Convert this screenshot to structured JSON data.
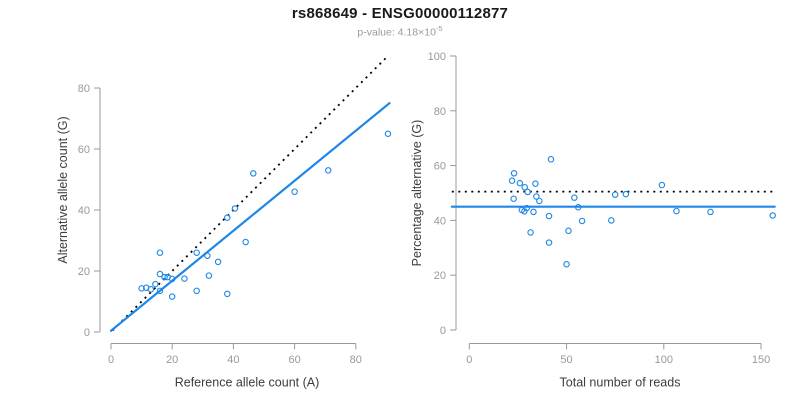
{
  "figure": {
    "title": "rs868649 - ENSG00000112877",
    "pvalue_text": "p-value: 4.18×10",
    "pvalue_exponent": "-5"
  },
  "colors": {
    "accent_blue": "#1E87E8",
    "reference_line_black": "#000000",
    "axis_gray": "#999999",
    "axis_title_dark": "#3d3d3d",
    "title_black": "#1a1a1a",
    "subtitle_gray": "#9a9a9a"
  },
  "chart_data": [
    {
      "id": "allele-counts",
      "type": "scatter",
      "title": "",
      "xlabel": "Reference allele count (A)",
      "ylabel": "Alternative allele count (G)",
      "xticks": [
        0,
        20,
        40,
        60,
        80
      ],
      "yticks": [
        0,
        20,
        40,
        60,
        80
      ],
      "xlim": [
        0,
        91
      ],
      "ylim": [
        0,
        91
      ],
      "grid": false,
      "legend": false,
      "points": [
        [
          10,
          14.3
        ],
        [
          11.5,
          14.5
        ],
        [
          13,
          14
        ],
        [
          14.5,
          15.7
        ],
        [
          16,
          26
        ],
        [
          16,
          19
        ],
        [
          16,
          13.5
        ],
        [
          17.5,
          18
        ],
        [
          18.5,
          18
        ],
        [
          20,
          17.4
        ],
        [
          20,
          11.6
        ],
        [
          24,
          17.5
        ],
        [
          28,
          26
        ],
        [
          28,
          13.5
        ],
        [
          31.5,
          25
        ],
        [
          32,
          18.5
        ],
        [
          35,
          23
        ],
        [
          38,
          37.5
        ],
        [
          38,
          12.5
        ],
        [
          40.5,
          40.5
        ],
        [
          44,
          29.5
        ],
        [
          46.5,
          52
        ],
        [
          60,
          46
        ],
        [
          71,
          53
        ],
        [
          90.5,
          65
        ]
      ],
      "lines": [
        {
          "name": "identity-expected",
          "style": "dotted",
          "slope": 1,
          "intercept": 0,
          "x_from": 0.5,
          "x_to": 90.5
        },
        {
          "name": "regression-fit",
          "style": "solid",
          "slope": 0.82,
          "intercept": 0.4,
          "x_from": 0,
          "x_to": 91
        }
      ]
    },
    {
      "id": "percentage-vs-coverage",
      "type": "scatter",
      "title": "",
      "xlabel": "Total number of reads",
      "ylabel": "Percentage alternative (G)",
      "xticks": [
        0,
        50,
        100,
        150
      ],
      "yticks": [
        0,
        20,
        40,
        60,
        80,
        100
      ],
      "xlim": [
        0,
        157
      ],
      "ylim": [
        0,
        100
      ],
      "grid": false,
      "legend": false,
      "points": [
        [
          22,
          54.5
        ],
        [
          22.8,
          47.9
        ],
        [
          23,
          57.2
        ],
        [
          26,
          53.6
        ],
        [
          27,
          43.8
        ],
        [
          28.3,
          43.3
        ],
        [
          28.5,
          52.1
        ],
        [
          29.5,
          44.5
        ],
        [
          30,
          50.4
        ],
        [
          31.5,
          35.6
        ],
        [
          33,
          43.1
        ],
        [
          34,
          53.4
        ],
        [
          34.5,
          48.7
        ],
        [
          36,
          47.1
        ],
        [
          41,
          41.6
        ],
        [
          41,
          31.9
        ],
        [
          42,
          62.3
        ],
        [
          50,
          24
        ],
        [
          51,
          36.2
        ],
        [
          54,
          48.3
        ],
        [
          56,
          44.8
        ],
        [
          58,
          39.8
        ],
        [
          73,
          40
        ],
        [
          75,
          49.4
        ],
        [
          80.5,
          49.6
        ],
        [
          99,
          52.9
        ],
        [
          106.5,
          43.4
        ],
        [
          124,
          43.1
        ],
        [
          156,
          41.8
        ]
      ],
      "lines": [
        {
          "name": "expected-percentage",
          "style": "dotted",
          "slope": 0,
          "intercept": 50.5,
          "x_from": -9,
          "x_to": 157
        },
        {
          "name": "mean-percentage",
          "style": "solid",
          "slope": 0,
          "intercept": 45.0,
          "x_from": -9,
          "x_to": 157
        }
      ]
    }
  ]
}
